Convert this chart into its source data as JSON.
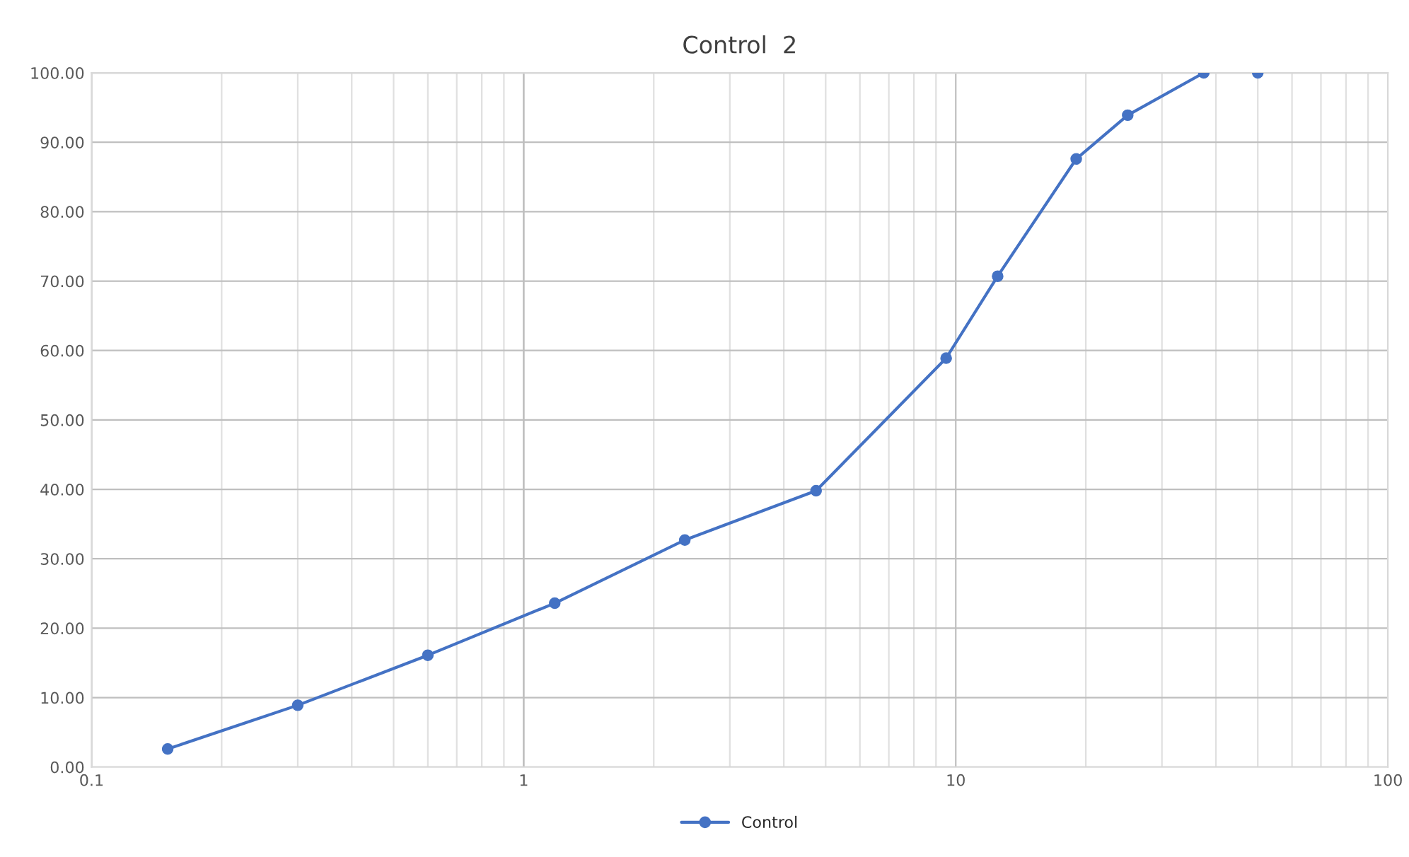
{
  "chart_data": {
    "type": "line",
    "title": "Control  2",
    "xlim": [
      0.1,
      100
    ],
    "xticks": [
      0.1,
      1,
      10,
      100
    ],
    "log": "x",
    "ylim": [
      0,
      100
    ],
    "yticks": [
      {
        "value": 0,
        "label": "0.00"
      },
      {
        "value": 10,
        "label": "10.00"
      },
      {
        "value": 20,
        "label": "20.00"
      },
      {
        "value": 30,
        "label": "30.00"
      },
      {
        "value": 40,
        "label": "40.00"
      },
      {
        "value": 50,
        "label": "50.00"
      },
      {
        "value": 60,
        "label": "60.00"
      },
      {
        "value": 70,
        "label": "70.00"
      },
      {
        "value": 80,
        "label": "80.00"
      },
      {
        "value": 90,
        "label": "90.00"
      },
      {
        "value": 100,
        "label": "100.00"
      }
    ],
    "grid": true,
    "legend": "bottom",
    "marker": "circle",
    "line_style": "solid",
    "series": [
      {
        "name": "Control",
        "color": "#4472c4",
        "x": [
          0.15,
          0.3,
          0.6,
          1.18,
          2.36,
          4.75,
          9.5,
          12.5,
          19,
          25,
          37.5
        ],
        "values": [
          2.6,
          8.9,
          16.1,
          23.6,
          32.7,
          39.8,
          58.9,
          70.7,
          87.6,
          93.9,
          100
        ]
      },
      {
        "type": "scatter",
        "color": "#4472c4",
        "x": [
          50
        ],
        "values": [
          100
        ]
      }
    ]
  }
}
